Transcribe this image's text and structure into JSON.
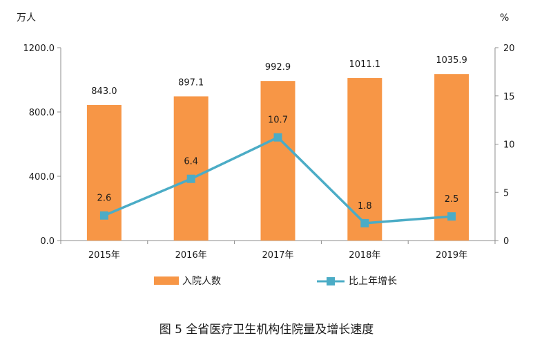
{
  "chart_data": {
    "type": "bar",
    "title": "图 5  全省医疗卫生机构住院量及增长速度",
    "categories": [
      "2015年",
      "2016年",
      "2017年",
      "2018年",
      "2019年"
    ],
    "left_axis": {
      "unit": "万人",
      "ylim": [
        0,
        1200
      ],
      "ticks": [
        "0.0",
        "400.0",
        "800.0",
        "1200.0"
      ]
    },
    "right_axis": {
      "unit": "%",
      "ylim": [
        0,
        20
      ],
      "ticks": [
        "0",
        "5",
        "10",
        "15",
        "20"
      ]
    },
    "series": [
      {
        "name": "入院人数",
        "type": "bar",
        "axis": "left",
        "color": "#F79646",
        "values": [
          843.0,
          897.1,
          992.9,
          1011.1,
          1035.9
        ],
        "labels": [
          "843.0",
          "897.1",
          "992.9",
          "1011.1",
          "1035.9"
        ]
      },
      {
        "name": "比上年增长",
        "type": "line",
        "axis": "right",
        "color": "#4BACC6",
        "values": [
          2.6,
          6.4,
          10.7,
          1.8,
          2.5
        ],
        "labels": [
          "2.6",
          "6.4",
          "10.7",
          "1.8",
          "2.5"
        ]
      }
    ],
    "legend_position": "bottom",
    "grid": false
  }
}
